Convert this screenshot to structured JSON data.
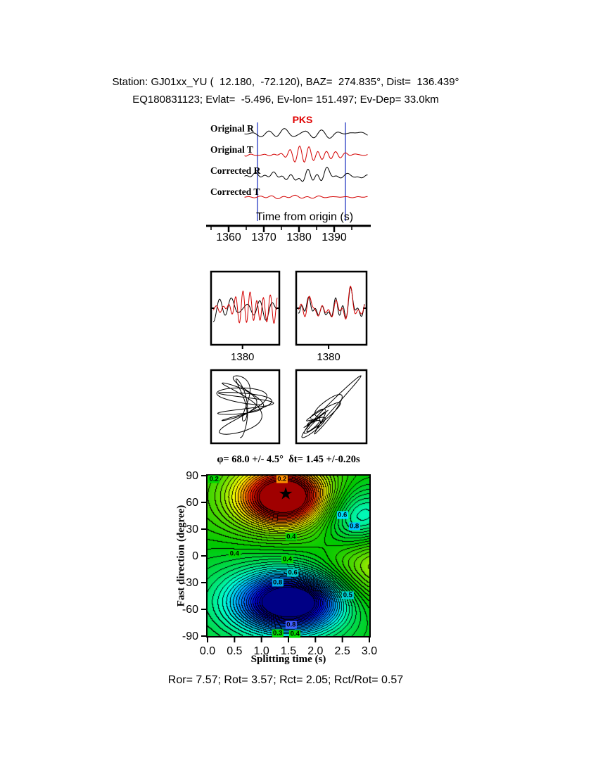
{
  "header": {
    "line1": "Station: GJ01xx_YU (  12.180,  -72.120), BAZ=  274.835°, Dist=  136.439°",
    "line2": "EQ180831123; Evlat=  -5.496, Ev-lon= 151.497; Ev-Dep= 33.0km"
  },
  "waveform_panel": {
    "phase_label": "PKS",
    "phase_color": "#e00000",
    "phase_time": 1381,
    "traces": [
      {
        "label": "Original R",
        "color": "#000000",
        "seed": 7,
        "amp": 4.6
      },
      {
        "label": "Original T",
        "color": "#d40000",
        "seed": 21,
        "amp": 3.6
      },
      {
        "label": "Corrected R",
        "color": "#000000",
        "seed": 33,
        "amp": 4.6
      },
      {
        "label": "Corrected T",
        "color": "#d40000",
        "seed": 44,
        "amp": 1.1
      }
    ],
    "window": {
      "start": 1368.2,
      "end": 1393.2,
      "color": "#4455cc"
    },
    "axis": {
      "label": "Time from origin (s)",
      "xmin": 1354,
      "xmax": 1400,
      "ticks": [
        "1360",
        "1370",
        "1380",
        "1390"
      ],
      "minor_step": 5
    }
  },
  "zoom_panels": [
    {
      "name": "original-window",
      "tick_label": "1380",
      "r_seed": 7,
      "t_seed": 21,
      "aligned": false
    },
    {
      "name": "corrected-window",
      "tick_label": "1380",
      "r_seed": 33,
      "t_seed": 52,
      "aligned": true
    }
  ],
  "particle_panels": [
    {
      "name": "original-particle-motion",
      "x_seed": 21,
      "y_seed": 7,
      "aligned": false
    },
    {
      "name": "corrected-particle-motion",
      "x_seed": 33,
      "y_seed": 52,
      "aligned": true
    }
  ],
  "chart_data": {
    "type": "heatmap",
    "title": "φ= 68.0 +/- 4.5°  δt= 1.45 +/-0.20s",
    "xlabel": "Splitting time (s)",
    "ylabel": "Fast direction (degree)",
    "xlim": [
      0,
      3
    ],
    "ylim": [
      -90,
      90
    ],
    "xticks": [
      "0.0",
      "0.5",
      "1.0",
      "1.5",
      "2.0",
      "2.5",
      "3.0"
    ],
    "yticks": [
      "90",
      "60",
      "30",
      "0",
      "-30",
      "-60",
      "-90"
    ],
    "grid": false,
    "best_solution": {
      "phi_deg": 68.0,
      "phi_err_deg": 4.5,
      "dt_s": 1.45,
      "dt_err_s": 0.2
    },
    "star": {
      "x": 1.45,
      "y": 68
    },
    "field": {
      "base": 0.15,
      "step": 0.05,
      "blobs": [
        [
          1.45,
          66,
          1.0,
          0.55,
          22
        ],
        [
          1.2,
          62,
          0.3,
          0.9,
          40
        ],
        [
          2.85,
          40,
          -0.6,
          0.55,
          26
        ],
        [
          1.55,
          -52,
          -1.15,
          0.6,
          20
        ],
        [
          1.3,
          -50,
          -0.4,
          1.2,
          45
        ],
        [
          3.1,
          -5,
          0.5,
          0.7,
          35
        ]
      ]
    },
    "colormap": [
      [
        0.0,
        "#000080"
      ],
      [
        0.1,
        "#0000e0"
      ],
      [
        0.2,
        "#0060ff"
      ],
      [
        0.3,
        "#00c0ff"
      ],
      [
        0.38,
        "#00ffd0"
      ],
      [
        0.46,
        "#00e060"
      ],
      [
        0.56,
        "#00c800"
      ],
      [
        0.68,
        "#60dc00"
      ],
      [
        0.78,
        "#ffff00"
      ],
      [
        0.86,
        "#ff9000"
      ],
      [
        0.93,
        "#ff2000"
      ],
      [
        1.0,
        "#a00000"
      ]
    ],
    "contour_labels": [
      {
        "text": "0.2",
        "x": 0.12,
        "y": 86,
        "bg": "#00d800"
      },
      {
        "text": "0.2",
        "x": 1.38,
        "y": 86,
        "bg": "#ff9000"
      },
      {
        "text": "0.6",
        "x": 2.5,
        "y": 46,
        "bg": "#00e0ff"
      },
      {
        "text": "0.8",
        "x": 2.72,
        "y": 33,
        "bg": "#00c0ff"
      },
      {
        "text": "0.4",
        "x": 1.55,
        "y": 21,
        "bg": "#00d800"
      },
      {
        "text": "0.4",
        "x": 0.5,
        "y": 2,
        "bg": "#00d800"
      },
      {
        "text": "0.4",
        "x": 1.48,
        "y": -4,
        "bg": "#00d800"
      },
      {
        "text": "0.6",
        "x": 1.58,
        "y": -19,
        "bg": "#00cccc"
      },
      {
        "text": "0.8",
        "x": 1.3,
        "y": -30,
        "bg": "#00a8e8"
      },
      {
        "text": "0.5",
        "x": 2.6,
        "y": -44,
        "bg": "#00cccc"
      },
      {
        "text": "0.8",
        "x": 1.55,
        "y": -77,
        "bg": "#4060ff"
      },
      {
        "text": "0.3",
        "x": 1.3,
        "y": -87,
        "bg": "#00d800"
      },
      {
        "text": "0.4",
        "x": 1.62,
        "y": -88,
        "bg": "#00d800"
      }
    ]
  },
  "footer": {
    "text": "Ror= 7.57; Rot= 3.57; Rct= 2.05; Rct/Rot= 0.57"
  }
}
